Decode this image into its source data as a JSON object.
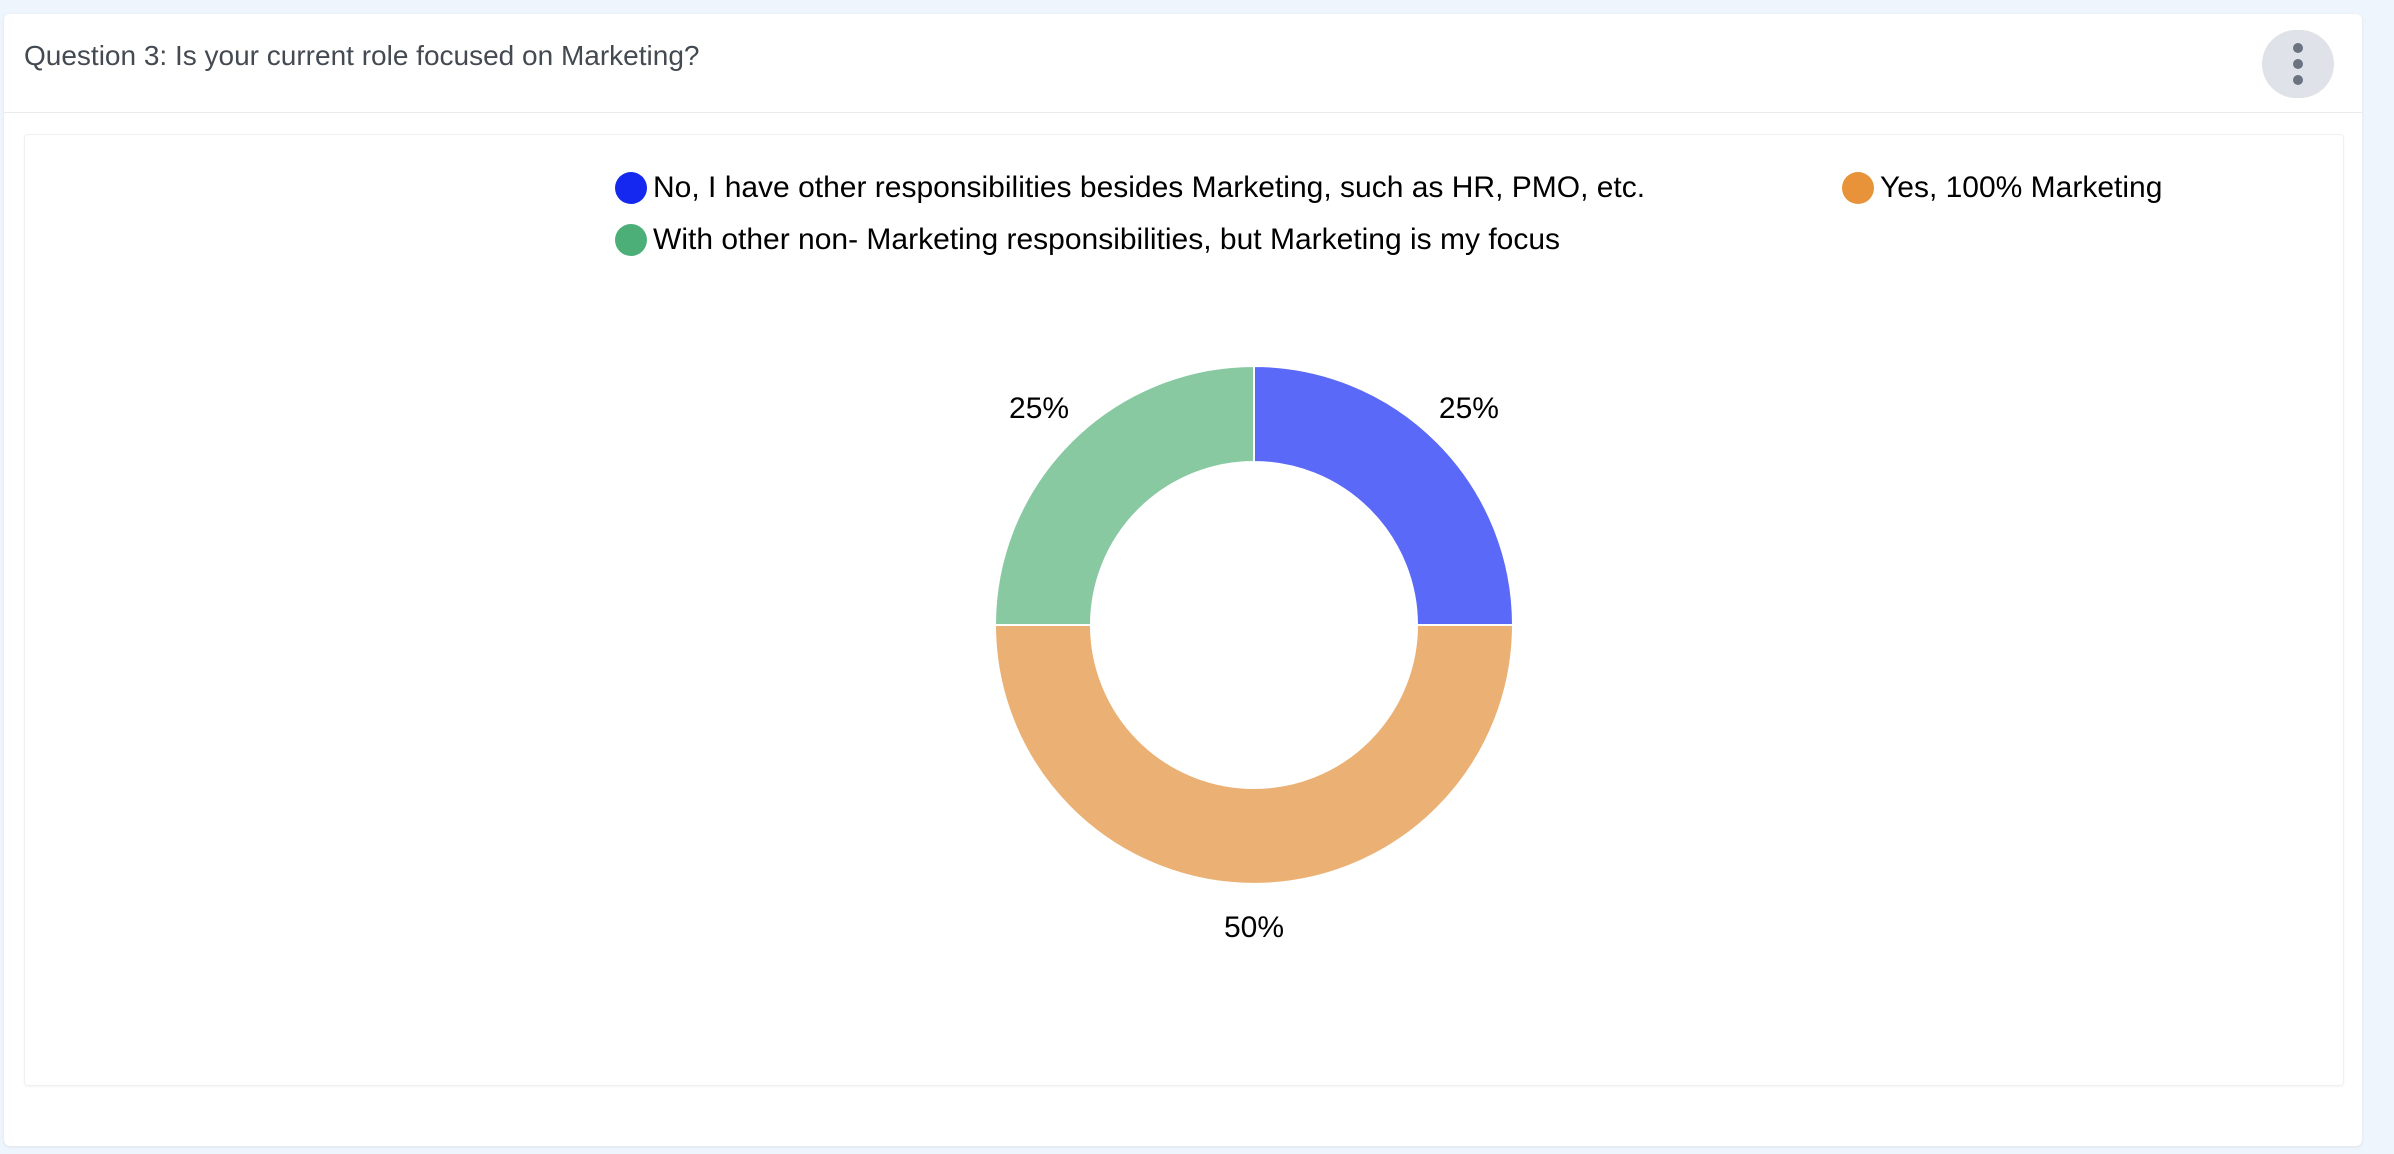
{
  "question": {
    "title": "Question 3: Is your current role focused on Marketing?"
  },
  "menu": {
    "icon": "more-vertical-icon"
  },
  "chart_data": {
    "type": "pie",
    "donut": true,
    "legend_position": "top",
    "categories": [
      "No, I have other responsibilities besides Marketing, such as HR, PMO, etc.",
      "Yes, 100% Marketing",
      "With other non- Marketing responsibilities, but Marketing is my focus"
    ],
    "values": [
      25,
      50,
      25
    ],
    "data_labels": [
      "25%",
      "50%",
      "25%"
    ],
    "legend_colors": [
      "#1428f0",
      "#e8923a",
      "#4caf78"
    ],
    "slice_colors": [
      "#5a69f7",
      "#ebb073",
      "#88c9a2"
    ]
  }
}
